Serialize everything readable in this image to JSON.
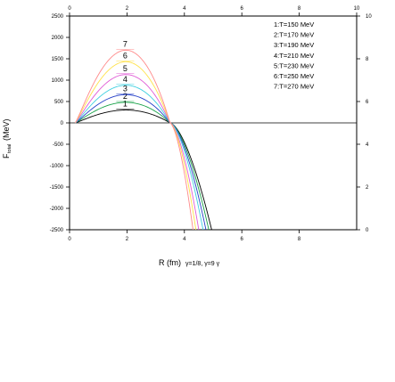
{
  "chart_data": {
    "type": "line",
    "xlabel": "R (fm)",
    "xlabel_extra": "γ=1/8, γ=9 γ",
    "ylabel": "F",
    "ylabel_sub": "total",
    "ylabel_unit": "(MeV)",
    "xlim": [
      0,
      10
    ],
    "ylim": [
      -2500,
      2500
    ],
    "right_ylim": [
      0,
      10
    ],
    "x_ticks_bottom": [
      "0",
      "2",
      "4",
      "6",
      "8"
    ],
    "x_ticks_top": [
      "0",
      "2",
      "4",
      "6",
      "8",
      "10"
    ],
    "y_ticks": [
      "2500",
      "2000",
      "1500",
      "1000",
      "500",
      "0",
      "-500",
      "-1000",
      "-1500",
      "-2000",
      "-2500"
    ],
    "y_tick_values": [
      2500,
      2000,
      1500,
      1000,
      500,
      0,
      -500,
      -1000,
      -1500,
      -2000,
      -2500
    ],
    "right_ticks": [
      "10",
      "8",
      "6",
      "4",
      "2",
      "0"
    ],
    "right_tick_values": [
      10,
      8,
      6,
      4,
      2,
      0
    ],
    "legend": [
      "1:T=150 MeV",
      "2:T=170 MeV",
      "3:T=190 MeV",
      "4:T=210 MeV",
      "5:T=230 MeV",
      "6:T=250 MeV",
      "7:T=270 MeV"
    ],
    "series": [
      {
        "name": "1:T=150 MeV",
        "label": "1",
        "color": "#000000",
        "peak": 300,
        "x_end": 4.95,
        "y_end": -2500
      },
      {
        "name": "2:T=170 MeV",
        "label": "2",
        "color": "#1aa34a",
        "peak": 480,
        "x_end": 4.85,
        "y_end": -2500
      },
      {
        "name": "3:T=190 MeV",
        "label": "3",
        "color": "#2540c8",
        "peak": 660,
        "x_end": 4.75,
        "y_end": -2500
      },
      {
        "name": "4:T=210 MeV",
        "label": "4",
        "color": "#3fd0e0",
        "peak": 880,
        "x_end": 4.65,
        "y_end": -2500
      },
      {
        "name": "5:T=230 MeV",
        "label": "5",
        "color": "#e05cd6",
        "peak": 1130,
        "x_end": 4.5,
        "y_end": -2500
      },
      {
        "name": "6:T=250 MeV",
        "label": "6",
        "color": "#ffe24a",
        "peak": 1430,
        "x_end": 4.4,
        "y_end": -2500
      },
      {
        "name": "7:T=270 MeV",
        "label": "7",
        "color": "#ff8a8a",
        "peak": 1700,
        "x_end": 4.3,
        "y_end": -2500
      }
    ],
    "x_start": 0.2,
    "x_peak": 2.0,
    "x_zero": 3.5
  }
}
